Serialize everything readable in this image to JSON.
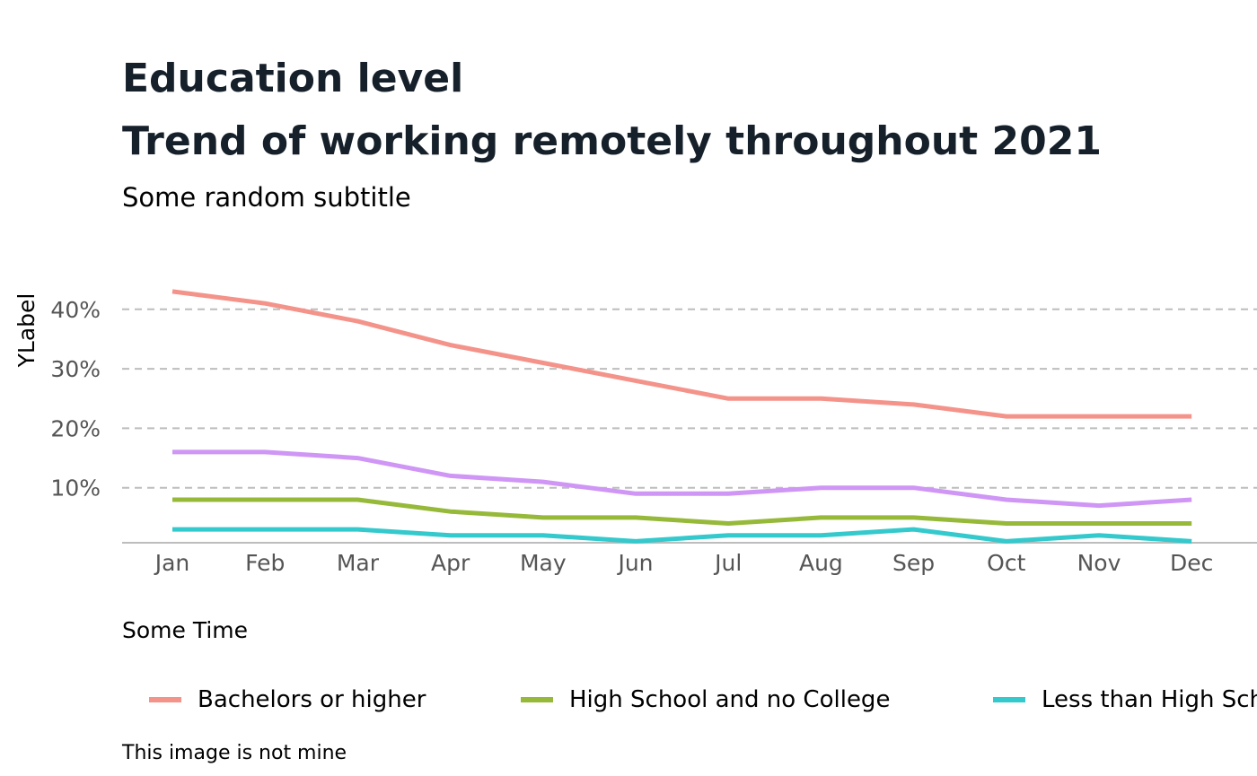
{
  "header": {
    "title_line1": "Education level",
    "title_line2": "Trend of working remotely throughout 2021",
    "subtitle": "Some random subtitle"
  },
  "caption": "This image is not mine",
  "chart_data": {
    "type": "line",
    "title": "Education level\nTrend of working remotely throughout 2021",
    "subtitle": "Some random subtitle",
    "xlabel": "Some Time",
    "ylabel": "YLabel",
    "categories": [
      "Jan",
      "Feb",
      "Mar",
      "Apr",
      "May",
      "Jun",
      "Jul",
      "Aug",
      "Sep",
      "Oct",
      "Nov",
      "Dec"
    ],
    "yticks": [
      10,
      20,
      30,
      40
    ],
    "ytick_labels": [
      "10%",
      "20%",
      "30%",
      "40%"
    ],
    "ylim": [
      0,
      45
    ],
    "grid": "horizontal-dashed",
    "legend_position": "bottom",
    "series": [
      {
        "name": "Bachelors or higher",
        "color": "#f4938a",
        "values": [
          43,
          41,
          38,
          34,
          31,
          28,
          25,
          25,
          24,
          22,
          22,
          22
        ]
      },
      {
        "name": "High School and no College",
        "color": "#96b93a",
        "values": [
          8,
          8,
          8,
          6,
          5,
          5,
          4,
          5,
          5,
          4,
          4,
          4
        ]
      },
      {
        "name": "Less than High School",
        "color": "#34c9cc",
        "values": [
          3,
          3,
          3,
          2,
          2,
          1,
          2,
          2,
          3,
          1,
          2,
          1
        ]
      },
      {
        "name": "",
        "color": "#cf96f5",
        "values": [
          16,
          16,
          15,
          12,
          11,
          9,
          9,
          10,
          10,
          8,
          7,
          8
        ]
      }
    ]
  }
}
